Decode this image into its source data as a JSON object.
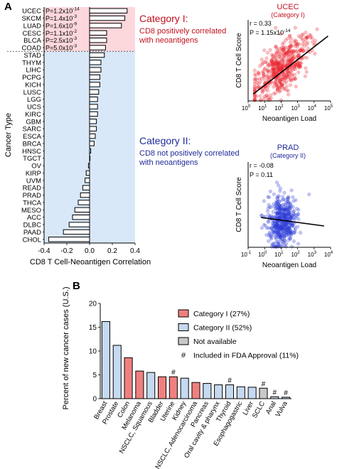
{
  "panel_a": {
    "label": "A",
    "chart_data": {
      "type": "bar",
      "orientation": "horizontal",
      "categories": [
        "UCEC",
        "SKCM",
        "LUAD",
        "CESC",
        "BLCA",
        "COAD",
        "STAD",
        "THYM",
        "LIHC",
        "PCPG",
        "KICH",
        "LUSC",
        "LGG",
        "UCS",
        "KIRC",
        "GBM",
        "SARC",
        "ESCA",
        "BRCA",
        "HNSC",
        "TGCT",
        "OV",
        "KIRP",
        "UVM",
        "READ",
        "PRAD",
        "THCA",
        "MESO",
        "ACC",
        "DLBC",
        "PAAD",
        "CHOL"
      ],
      "values": [
        0.33,
        0.31,
        0.28,
        0.15,
        0.15,
        0.14,
        0.13,
        0.1,
        0.1,
        0.09,
        0.09,
        0.08,
        0.07,
        0.07,
        0.07,
        0.06,
        0.06,
        0.05,
        0.04,
        0.01,
        0.0,
        -0.01,
        -0.03,
        -0.04,
        -0.06,
        -0.08,
        -0.1,
        -0.13,
        -0.15,
        -0.18,
        -0.23,
        -0.36
      ],
      "pvalues": [
        {
          "mantissa": "P=1.2x10",
          "exp": "-14"
        },
        {
          "mantissa": "P=1.4x10",
          "exp": "-3"
        },
        {
          "mantissa": "P=1.6x10",
          "exp": "-9"
        },
        {
          "mantissa": "P=1.1x10",
          "exp": "-2"
        },
        {
          "mantissa": "P=2.5x10",
          "exp": "-3"
        },
        {
          "mantissa": "P=5.0x10",
          "exp": "-3"
        }
      ],
      "xlabel": "CD8 T Cell-Neoantigen Correlation",
      "ylabel": "Cancer  Type",
      "xlim": [
        -0.4,
        0.4
      ],
      "xticks": [
        "-0.4",
        "-0.2",
        "0.0",
        "0.2",
        "0.4"
      ],
      "category_i_count": 6,
      "colors": {
        "category_i_bg": "#fcd7dc",
        "category_ii_bg": "#d9e8f8"
      }
    },
    "category_i": {
      "title": "Category I:",
      "line1": "CD8 positively correlated",
      "line2": "with neoantigens",
      "color": "#c0111f"
    },
    "category_ii": {
      "title": "Category II:",
      "line1": "CD8 not positively correlated",
      "line2": "with neoantigens",
      "color": "#1f2b99"
    }
  },
  "scatter_ucec": {
    "title": "UCEC",
    "subtitle": "(Category I)",
    "r_text": "r = 0.33",
    "p_text": "P = 1.15x10",
    "p_exp": "-14",
    "chart_data": {
      "type": "scatter",
      "xscale": "log",
      "xlim": [
        1,
        100000
      ],
      "ylim": [
        0,
        0.3
      ],
      "xticks": [
        "10",
        "10",
        "10",
        "10",
        "10",
        "10"
      ],
      "xtick_exps": [
        "0",
        "1",
        "2",
        "3",
        "4",
        "5"
      ],
      "fit_line": [
        [
          2,
          0.025
        ],
        [
          70000,
          0.24
        ]
      ],
      "xlabel": "Neoantigen Load",
      "ylabel": "CD8 T Cell Score",
      "color": "#e8202a"
    }
  },
  "scatter_prad": {
    "title": "PRAD",
    "subtitle": "(Category II)",
    "r_text": "r = -0.08",
    "p_text": "P = 0.11",
    "chart_data": {
      "type": "scatter",
      "xscale": "log",
      "xlim": [
        0.1,
        10000
      ],
      "ylim": [
        0,
        0.4
      ],
      "xticks": [
        "10",
        "10",
        "10",
        "10",
        "10",
        "10"
      ],
      "xtick_exps": [
        "-1",
        "0",
        "1",
        "2",
        "3",
        "4"
      ],
      "fit_line": [
        [
          0.6,
          0.14
        ],
        [
          4000,
          0.1
        ]
      ],
      "xlabel": "Neoantigen Load",
      "ylabel": "CD8 T Cell Score",
      "color": "#2a3bd6"
    }
  },
  "panel_b": {
    "label": "B",
    "chart_data": {
      "type": "bar",
      "categories": [
        "Breast",
        "Prostate",
        "Colon",
        "Melanoma",
        "NSCLC, Squamous",
        "Bladder",
        "Uterine",
        "Kidney",
        "NSCLC, Adenocarcinoma",
        "Pancreas",
        "Oral cavity & pharynx",
        "Thyroid",
        "Esophagogastric",
        "Liver",
        "SCLC",
        "Anal",
        "Vulva"
      ],
      "values": [
        16.2,
        11.2,
        8.6,
        5.8,
        5.5,
        4.6,
        4.6,
        4.3,
        3.4,
        3.2,
        2.9,
        2.9,
        2.5,
        2.4,
        2.2,
        0.4,
        0.3
      ],
      "groups": [
        "II",
        "II",
        "I",
        "I",
        "II",
        "I",
        "I",
        "II",
        "I",
        "II",
        "II",
        "II",
        "II",
        "II",
        "NA",
        "II",
        "II"
      ],
      "fda_approval": [
        false,
        false,
        false,
        false,
        false,
        false,
        true,
        false,
        false,
        false,
        false,
        true,
        false,
        false,
        true,
        true,
        true
      ],
      "ylabel": "Percent of new cancer cases (U.S.)",
      "ylim": [
        0,
        20
      ],
      "yticks": [
        "0",
        "5",
        "10",
        "15",
        "20"
      ],
      "colors": {
        "I": "#f08080",
        "II": "#c5d9f1",
        "NA": "#c8c8c8"
      }
    },
    "legend": [
      {
        "label": "Category I (27%)",
        "kind": "I"
      },
      {
        "label": "Category II (52%)",
        "kind": "II"
      },
      {
        "label": "Not available",
        "kind": "NA"
      },
      {
        "label": "Included in FDA Approval (11%)",
        "kind": "hash",
        "marker": "#"
      }
    ]
  }
}
